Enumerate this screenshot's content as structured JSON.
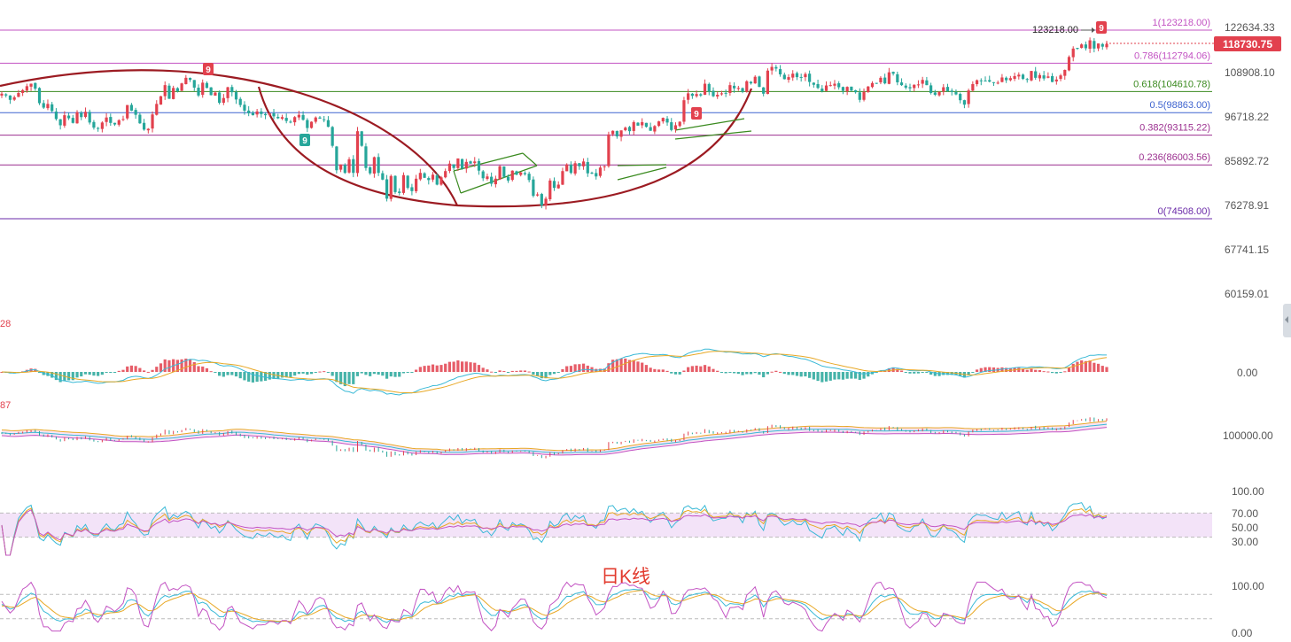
{
  "chart_data": {
    "type": "candlestick",
    "title": "日K线",
    "colors": {
      "up": "#e2414e",
      "down": "#26a69a",
      "price_tag": "#e2414e",
      "background": "#ffffff"
    },
    "price_axis": {
      "scale": "log",
      "tick_labels": [
        "122634.33",
        "108908.10",
        "96718.22",
        "85892.72",
        "76278.91",
        "67741.15",
        "60159.01"
      ],
      "range": [
        58000,
        126000
      ]
    },
    "current_price": "118730.75",
    "high_label": "123218.00",
    "td_sequential_marks": [
      "9",
      "9",
      "9",
      "9"
    ],
    "fibonacci": [
      {
        "level": "1(123218.00)",
        "price": 123218.0,
        "color": "#c353c3"
      },
      {
        "level": "0.786(112794.06)",
        "price": 112794.06,
        "color": "#c353c3"
      },
      {
        "level": "0.618(104610.78)",
        "price": 104610.78,
        "color": "#3a8a1f"
      },
      {
        "level": "0.5(98863.00)",
        "price": 98863.0,
        "color": "#3e63cf"
      },
      {
        "level": "0.382(93115.22)",
        "price": 93115.22,
        "color": "#9b2f8f"
      },
      {
        "level": "0.236(86003.56)",
        "price": 86003.56,
        "color": "#9b2f8f"
      },
      {
        "level": "0(74508.00)",
        "price": 74508.0,
        "color": "#6a2aa8"
      }
    ],
    "annotations": [
      "rounding bottom arc",
      "rising channel",
      "rising wedge",
      "rising wedge"
    ],
    "closes": [
      104000,
      103500,
      102300,
      103000,
      104200,
      105000,
      106100,
      106800,
      105400,
      101400,
      100200,
      101200,
      99300,
      97200,
      95600,
      98200,
      97400,
      96200,
      99000,
      97700,
      99100,
      96300,
      95000,
      94800,
      96300,
      97600,
      96200,
      95800,
      96900,
      97200,
      100900,
      99400,
      98300,
      96100,
      94500,
      94700,
      98400,
      101200,
      103300,
      106400,
      102600,
      105600,
      104700,
      106900,
      108500,
      107900,
      105700,
      103500,
      107100,
      105600,
      103600,
      104300,
      101500,
      102800,
      105800,
      104400,
      102400,
      100900,
      99400,
      98700,
      98200,
      99200,
      98500,
      98200,
      98700,
      97900,
      97400,
      97700,
      96700,
      96300,
      97700,
      98300,
      97000,
      94900,
      96500,
      97600,
      97300,
      96900,
      95200,
      90500,
      84800,
      86100,
      84200,
      87300,
      84200,
      94100,
      90500,
      85300,
      84100,
      87800,
      84200,
      82700,
      78600,
      83500,
      80000,
      79800,
      83700,
      80900,
      80200,
      82900,
      84200,
      83100,
      82600,
      83800,
      81600,
      83200,
      84600,
      86300,
      85300,
      87500,
      85200,
      86700,
      86300,
      86800,
      84700,
      83000,
      83400,
      81800,
      82900,
      85700,
      83300,
      82500,
      84700,
      83800,
      84300,
      83900,
      82600,
      79200,
      79500,
      77200,
      78600,
      82500,
      80900,
      81600,
      84600,
      86100,
      84200,
      86400,
      85700,
      86800,
      84100,
      84200,
      83400,
      85400,
      85700,
      93300,
      94200,
      92800,
      94300,
      95000,
      94100,
      96400,
      95500,
      96400,
      95200,
      94200,
      95400,
      96600,
      97500,
      96300,
      94400,
      95600,
      96500,
      102200,
      104100,
      103400,
      103900,
      103500,
      106800,
      104600,
      103300,
      103700,
      104100,
      104100,
      106400,
      105500,
      105600,
      104600,
      107500,
      106900,
      108800,
      105900,
      104000,
      110600,
      111700,
      111200,
      109500,
      108100,
      108700,
      109700,
      108700,
      108600,
      109600,
      107300,
      106500,
      105600,
      104700,
      106300,
      106400,
      106800,
      105800,
      104800,
      105900,
      104900,
      104400,
      102300,
      104500,
      106000,
      107000,
      107000,
      108500,
      106900,
      110100,
      109700,
      107200,
      106400,
      105700,
      105500,
      106500,
      106600,
      107900,
      106400,
      104200,
      103700,
      104500,
      105800,
      104700,
      104500,
      103800,
      102200,
      101000,
      104900,
      106700,
      107800,
      107600,
      107700,
      107400,
      107200,
      107100,
      108600,
      107800,
      108400,
      109000,
      109400,
      108200,
      107900,
      110500,
      108500,
      109300,
      108300,
      108900,
      107300,
      108000,
      109200,
      110800,
      114700,
      117300,
      117500,
      118600,
      117400,
      119900,
      117300,
      118900,
      117900,
      118730.75
    ],
    "indicators": [
      {
        "name": "MACD",
        "value_label": "28",
        "tick_labels": [
          "0.00"
        ]
      },
      {
        "name": "MA/BOLL",
        "value_label": "87",
        "tick_labels": [
          "100000.00"
        ]
      },
      {
        "name": "RSI",
        "tick_labels": [
          "100.00",
          "70.00",
          "50.00",
          "30.00"
        ],
        "band": [
          30,
          70
        ]
      },
      {
        "name": "KDJ",
        "tick_labels": [
          "100.00",
          "0.00"
        ]
      }
    ]
  }
}
